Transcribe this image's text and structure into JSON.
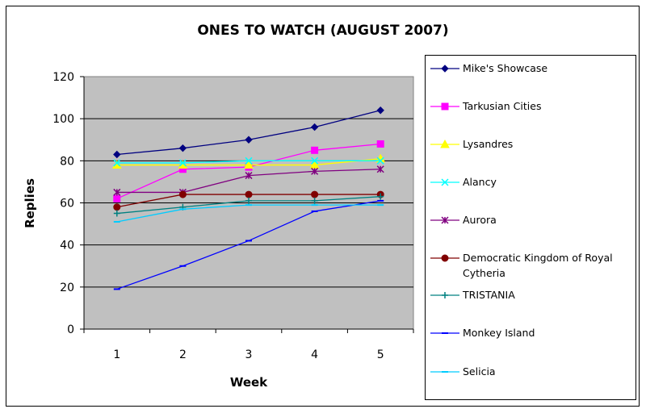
{
  "chart_data": {
    "type": "line",
    "title": "ONES TO WATCH (AUGUST 2007)",
    "xlabel": "Week",
    "ylabel": "Replies",
    "x": [
      1,
      2,
      3,
      4,
      5
    ],
    "ylim": [
      0,
      120
    ],
    "yticks": [
      0,
      20,
      40,
      60,
      80,
      100,
      120
    ],
    "grid": true,
    "legend_position": "right",
    "plot_background": "#c0c0c0",
    "series": [
      {
        "name": "Mike's Showcase",
        "color": "#000080",
        "marker": "diamond",
        "values": [
          83,
          86,
          90,
          96,
          104
        ]
      },
      {
        "name": "Tarkusian Cities",
        "color": "#ff00ff",
        "marker": "square",
        "values": [
          62,
          76,
          77,
          85,
          88
        ]
      },
      {
        "name": "Lysandres",
        "color": "#ffff00",
        "marker": "triangle",
        "values": [
          78,
          78,
          78,
          78,
          81
        ]
      },
      {
        "name": "Alancy",
        "color": "#00ffff",
        "marker": "x",
        "values": [
          79,
          79,
          80,
          80,
          80
        ]
      },
      {
        "name": "Aurora",
        "color": "#800080",
        "marker": "star",
        "values": [
          65,
          65,
          73,
          75,
          76
        ]
      },
      {
        "name": "Democratic Kingdom of Royal Cytheria",
        "color": "#800000",
        "marker": "circle",
        "values": [
          58,
          64,
          64,
          64,
          64
        ]
      },
      {
        "name": "TRISTANIA",
        "color": "#008080",
        "marker": "plus",
        "values": [
          55,
          58,
          61,
          61,
          63
        ]
      },
      {
        "name": "Monkey Island",
        "color": "#0000ff",
        "marker": "dash",
        "values": [
          19,
          30,
          42,
          56,
          61
        ]
      },
      {
        "name": "Selicia",
        "color": "#00ccff",
        "marker": "dash",
        "values": [
          51,
          57,
          59,
          59,
          59
        ]
      }
    ]
  }
}
